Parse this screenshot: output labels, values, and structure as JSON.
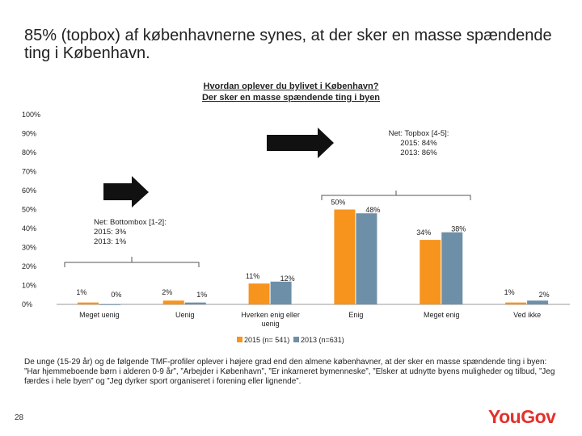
{
  "slide": {
    "title": "85% (topbox) af københavnerne synes, at der sker en masse spændende ting i København.",
    "footer": "De unge (15-29 år) og de følgende TMF-profiler oplever i højere grad end den almene københavner, at der sker en masse spændende ting i byen: ”Har hjemmeboende børn i alderen 0-9 år”, ”Arbejder i København”, ”Er inkarneret bymenneske”, ”Elsker at udnytte byens muligheder og tilbud, ”Jeg færdes i hele byen” og ”Jeg dyrker sport organiseret i forening eller lignende”.",
    "page_number": "28",
    "logo_text": "YouGov"
  },
  "chart_data": {
    "type": "bar",
    "title": "Hvordan oplever du bylivet i København?",
    "subtitle": "Der sker en masse spændende ting i byen",
    "categories": [
      "Meget uenig",
      "Uenig",
      "Hverken enig eller uenig",
      "Enig",
      "Meget enig",
      "Ved ikke"
    ],
    "series": [
      {
        "name": "2015 (n= 541)",
        "color": "#f7941d",
        "values": [
          1,
          2,
          11,
          50,
          34,
          1
        ],
        "labels": [
          "1%",
          "2%",
          "11%",
          "50%",
          "34%",
          "1%"
        ]
      },
      {
        "name": "2013 (n=631)",
        "color": "#6e8fa8",
        "values": [
          0,
          1,
          12,
          48,
          38,
          2
        ],
        "labels": [
          "0%",
          "1%",
          "12%",
          "48%",
          "38%",
          "2%"
        ]
      }
    ],
    "y_ticks": [
      "0%",
      "10%",
      "20%",
      "30%",
      "40%",
      "50%",
      "60%",
      "70%",
      "80%",
      "90%",
      "100%"
    ],
    "ylim": [
      0,
      100
    ],
    "legend_position": "bottom",
    "annotations": {
      "top": {
        "lines": [
          "Net: Topbox [4-5]:",
          "2015: 84%",
          "2013: 86%"
        ]
      },
      "bottom": {
        "lines": [
          "Net: Bottombox [1-2]:",
          "2015: 3%",
          "2013: 1%"
        ]
      }
    }
  }
}
